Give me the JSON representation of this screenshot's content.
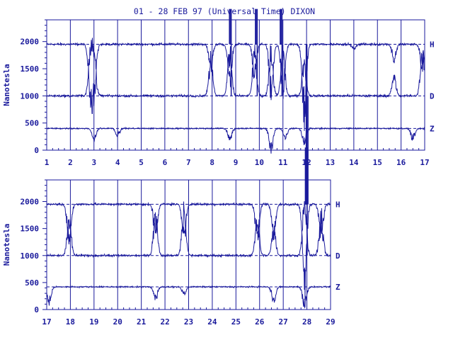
{
  "title": "01 - 28 FEB 97 (Universal Time) DIXON",
  "colors": {
    "primary": "#1a1a9c"
  },
  "chart_data": [
    {
      "type": "line",
      "ylabel": "Nanotesla",
      "xlabel": "",
      "ylim": [
        0,
        2400
      ],
      "yticks": [
        0,
        500,
        1000,
        1500,
        2000
      ],
      "xlim": [
        1,
        17
      ],
      "xticks": [
        1,
        2,
        3,
        4,
        5,
        6,
        7,
        8,
        9,
        10,
        11,
        12,
        13,
        14,
        15,
        16,
        17
      ],
      "grid": "vertical lines at each day",
      "series": [
        {
          "name": "H",
          "baseline": 1950,
          "disturbances": [
            {
              "day": 2.85,
              "min": 900
            },
            {
              "day": 3.0,
              "min": 850
            },
            {
              "day": 7.95,
              "min": 1400
            },
            {
              "day": 8.75,
              "min": 1100
            },
            {
              "day": 9.8,
              "min": 1250
            },
            {
              "day": 10.5,
              "min": 800
            },
            {
              "day": 11.0,
              "min": 900
            },
            {
              "day": 11.9,
              "min": 400
            },
            {
              "day": 14.0,
              "min": 1850
            },
            {
              "day": 15.7,
              "min": 1600
            },
            {
              "day": 16.9,
              "min": 1400
            }
          ]
        },
        {
          "name": "D",
          "baseline": 1000,
          "disturbances": [
            {
              "day": 2.85,
              "max": 1900
            },
            {
              "day": 3.0,
              "max": 1950
            },
            {
              "day": 7.95,
              "max": 1800
            },
            {
              "day": 8.75,
              "max": 2000
            },
            {
              "day": 9.8,
              "max": 1900
            },
            {
              "day": 10.5,
              "max": 1950
            },
            {
              "day": 11.0,
              "max": 2000
            },
            {
              "day": 11.9,
              "max": 1800
            },
            {
              "day": 15.7,
              "max": 1400
            },
            {
              "day": 16.9,
              "max": 1950
            }
          ]
        },
        {
          "name": "Z",
          "baseline": 400,
          "disturbances": [
            {
              "day": 3.0,
              "min": 150
            },
            {
              "day": 4.0,
              "min": 250
            },
            {
              "day": 8.75,
              "min": 150
            },
            {
              "day": 10.5,
              "min": -100
            },
            {
              "day": 11.1,
              "min": 200
            },
            {
              "day": 11.9,
              "min": 100
            },
            {
              "day": 16.5,
              "min": 150
            }
          ]
        }
      ],
      "annotations": [
        {
          "day": 8.75,
          "value": 2600,
          "text": "",
          "kind": "spike-offscale"
        },
        {
          "day": 9.85,
          "value": 2600,
          "text": "",
          "kind": "spike-offscale"
        },
        {
          "day": 10.9,
          "value": 2600,
          "text": "",
          "kind": "spike-offscale"
        },
        {
          "day": 12.0,
          "value": -1000,
          "text": "",
          "kind": "spike-offscale"
        }
      ]
    },
    {
      "type": "line",
      "ylabel": "Nanotesla",
      "xlabel": "",
      "ylim": [
        0,
        2400
      ],
      "yticks": [
        0,
        500,
        1000,
        1500,
        2000
      ],
      "xlim": [
        17,
        29
      ],
      "xticks": [
        17,
        18,
        19,
        20,
        21,
        22,
        23,
        24,
        25,
        26,
        27,
        28,
        29
      ],
      "grid": "vertical lines at each day",
      "series": [
        {
          "name": "H",
          "baseline": 1950,
          "disturbances": [
            {
              "day": 17.95,
              "min": 1100
            },
            {
              "day": 21.6,
              "min": 1300
            },
            {
              "day": 22.8,
              "min": 1200
            },
            {
              "day": 25.9,
              "min": 1250
            },
            {
              "day": 26.6,
              "min": 1300
            },
            {
              "day": 27.9,
              "min": 200
            },
            {
              "day": 28.6,
              "min": 1200
            }
          ]
        },
        {
          "name": "D",
          "baseline": 1000,
          "disturbances": [
            {
              "day": 17.95,
              "max": 1800
            },
            {
              "day": 21.6,
              "max": 2000
            },
            {
              "day": 22.8,
              "max": 2000
            },
            {
              "day": 25.9,
              "max": 1800
            },
            {
              "day": 26.6,
              "max": 1600
            },
            {
              "day": 27.9,
              "max": 2100
            },
            {
              "day": 28.6,
              "max": 1900
            }
          ]
        },
        {
          "name": "Z",
          "baseline": 420,
          "disturbances": [
            {
              "day": 17.1,
              "min": 100
            },
            {
              "day": 21.6,
              "min": 150
            },
            {
              "day": 22.8,
              "min": 250
            },
            {
              "day": 26.6,
              "min": 100
            },
            {
              "day": 27.9,
              "min": 0
            }
          ]
        }
      ],
      "annotations": [
        {
          "day": 27.95,
          "value": 3000,
          "text": "",
          "kind": "spike-offscale"
        }
      ]
    }
  ]
}
